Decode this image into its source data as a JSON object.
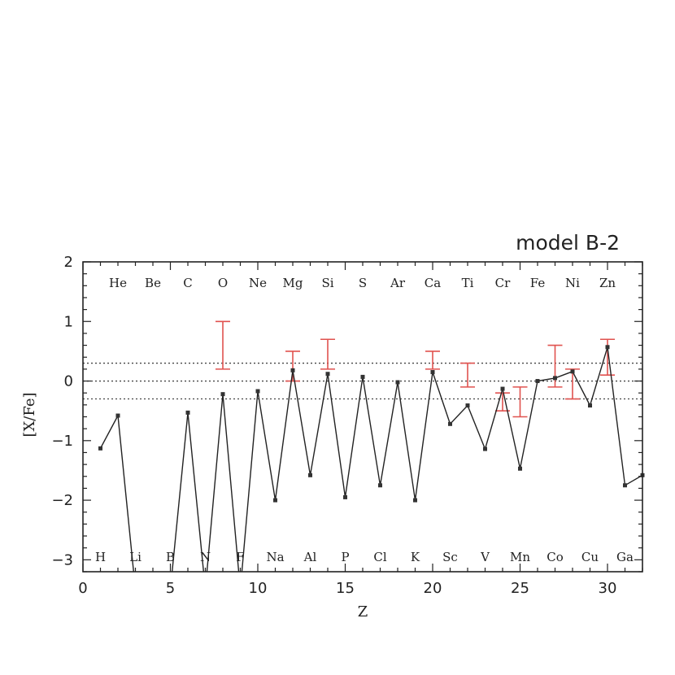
{
  "chart_data": {
    "type": "line",
    "title": "model B-2",
    "xlabel": "Z",
    "ylabel": "[X/Fe]",
    "xlim": [
      0,
      32
    ],
    "ylim": [
      -3.2,
      2
    ],
    "xticks": [
      0,
      5,
      10,
      15,
      20,
      25,
      30
    ],
    "yticks": [
      2,
      1,
      0,
      -1,
      -2,
      -3
    ],
    "reference_lines": [
      0.3,
      0,
      -0.3
    ],
    "grid": false,
    "series": [
      {
        "points": [
          {
            "z": 1,
            "v": -1.13
          },
          {
            "z": 2,
            "v": -0.58
          },
          {
            "z": 3,
            "v": -3.5
          },
          {
            "z": 5,
            "v": -3.5
          },
          {
            "z": 6,
            "v": -0.53
          },
          {
            "z": 7,
            "v": -3.5
          },
          {
            "z": 8,
            "v": -0.22
          },
          {
            "z": 9,
            "v": -3.5
          },
          {
            "z": 10,
            "v": -0.17
          },
          {
            "z": 11,
            "v": -2.0
          },
          {
            "z": 12,
            "v": 0.18
          },
          {
            "z": 13,
            "v": -1.58
          },
          {
            "z": 14,
            "v": 0.12
          },
          {
            "z": 15,
            "v": -1.95
          },
          {
            "z": 16,
            "v": 0.07
          },
          {
            "z": 17,
            "v": -1.75
          },
          {
            "z": 18,
            "v": -0.02
          },
          {
            "z": 19,
            "v": -2.0
          },
          {
            "z": 20,
            "v": 0.15
          },
          {
            "z": 21,
            "v": -0.72
          },
          {
            "z": 22,
            "v": -0.41
          },
          {
            "z": 23,
            "v": -1.14
          },
          {
            "z": 24,
            "v": -0.13
          },
          {
            "z": 25,
            "v": -1.47
          },
          {
            "z": 26,
            "v": 0.0
          },
          {
            "z": 27,
            "v": 0.05
          },
          {
            "z": 28,
            "v": 0.16
          },
          {
            "z": 29,
            "v": -0.41
          },
          {
            "z": 30,
            "v": 0.57
          },
          {
            "z": 31,
            "v": -1.75
          },
          {
            "z": 32,
            "v": -1.58
          }
        ]
      }
    ],
    "observed_ranges": [
      {
        "z": 8,
        "low": 0.2,
        "high": 1.0
      },
      {
        "z": 12,
        "low": 0.0,
        "high": 0.5
      },
      {
        "z": 14,
        "low": 0.2,
        "high": 0.7
      },
      {
        "z": 20,
        "low": 0.2,
        "high": 0.5
      },
      {
        "z": 22,
        "low": -0.1,
        "high": 0.3
      },
      {
        "z": 24,
        "low": -0.5,
        "high": -0.2
      },
      {
        "z": 25,
        "low": -0.6,
        "high": -0.1
      },
      {
        "z": 27,
        "low": -0.1,
        "high": 0.6
      },
      {
        "z": 28,
        "low": -0.3,
        "high": 0.2
      },
      {
        "z": 30,
        "low": 0.1,
        "high": 0.7
      }
    ],
    "element_labels_top": [
      {
        "z": 2,
        "label": "He"
      },
      {
        "z": 4,
        "label": "Be"
      },
      {
        "z": 6,
        "label": "C"
      },
      {
        "z": 8,
        "label": "O"
      },
      {
        "z": 10,
        "label": "Ne"
      },
      {
        "z": 12,
        "label": "Mg"
      },
      {
        "z": 14,
        "label": "Si"
      },
      {
        "z": 16,
        "label": "S"
      },
      {
        "z": 18,
        "label": "Ar"
      },
      {
        "z": 20,
        "label": "Ca"
      },
      {
        "z": 22,
        "label": "Ti"
      },
      {
        "z": 24,
        "label": "Cr"
      },
      {
        "z": 26,
        "label": "Fe"
      },
      {
        "z": 28,
        "label": "Ni"
      },
      {
        "z": 30,
        "label": "Zn"
      }
    ],
    "element_labels_bottom": [
      {
        "z": 1,
        "label": "H"
      },
      {
        "z": 3,
        "label": "Li"
      },
      {
        "z": 5,
        "label": "B"
      },
      {
        "z": 7,
        "label": "N"
      },
      {
        "z": 9,
        "label": "F"
      },
      {
        "z": 11,
        "label": "Na"
      },
      {
        "z": 13,
        "label": "Al"
      },
      {
        "z": 15,
        "label": "P"
      },
      {
        "z": 17,
        "label": "Cl"
      },
      {
        "z": 19,
        "label": "K"
      },
      {
        "z": 21,
        "label": "Sc"
      },
      {
        "z": 23,
        "label": "V"
      },
      {
        "z": 25,
        "label": "Mn"
      },
      {
        "z": 27,
        "label": "Co"
      },
      {
        "z": 29,
        "label": "Cu"
      },
      {
        "z": 31,
        "label": "Ga"
      }
    ],
    "colors": {
      "line": "#222222",
      "marker": "#333333",
      "observed_range": "#e0524f",
      "reference_line": "#444444",
      "axes": "#222222"
    }
  }
}
